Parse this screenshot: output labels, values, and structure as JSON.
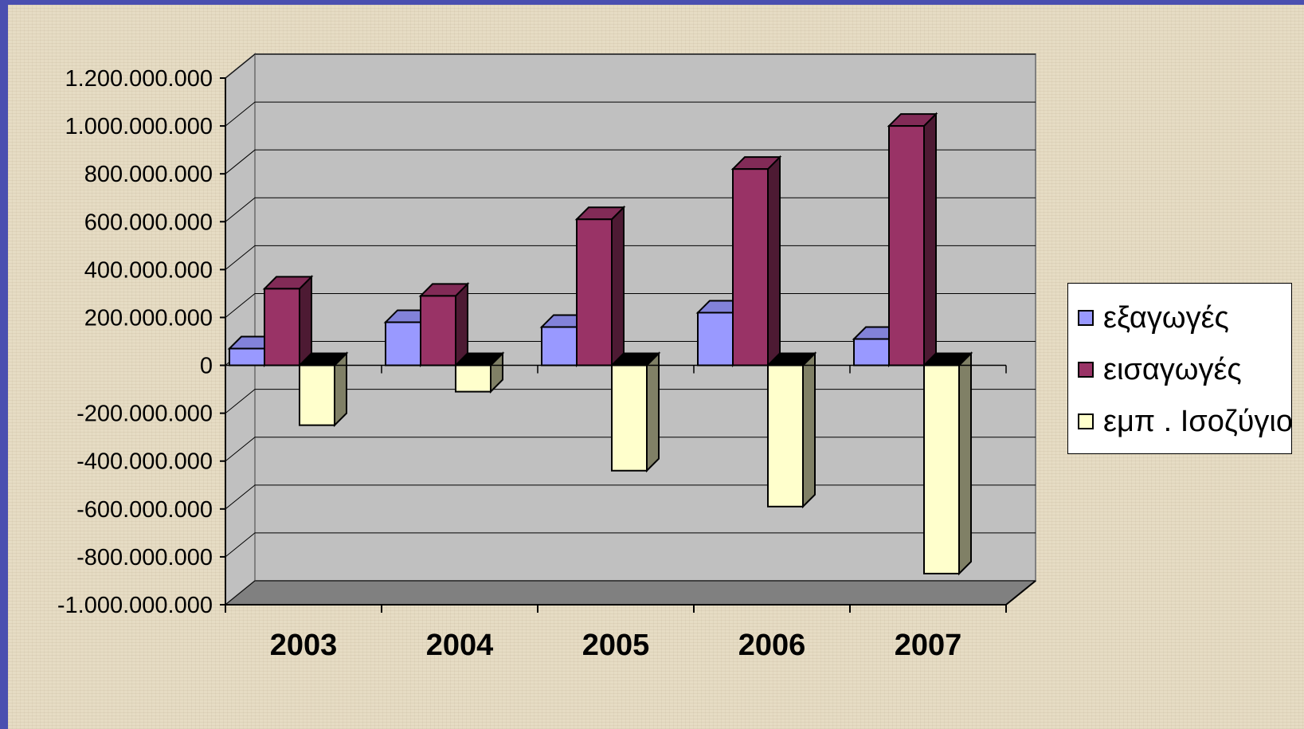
{
  "chart_data": {
    "type": "bar",
    "categories": [
      "2003",
      "2004",
      "2005",
      "2006",
      "2007"
    ],
    "series": [
      {
        "name": "εξαγωγές",
        "values": [
          70000000,
          180000000,
          160000000,
          220000000,
          110000000
        ],
        "color": "#9999ff"
      },
      {
        "name": "εισαγωγές",
        "values": [
          320000000,
          290000000,
          610000000,
          820000000,
          1000000000
        ],
        "color": "#993366"
      },
      {
        "name": "εμπ . Ισοζύγιο",
        "values": [
          -250000000,
          -110000000,
          -440000000,
          -590000000,
          -870000000
        ],
        "color": "#ffffcc"
      }
    ],
    "ylim": [
      -1000000000,
      1200000000
    ],
    "yticks": [
      {
        "value": 1200000000,
        "label": "1.200.000.000"
      },
      {
        "value": 1000000000,
        "label": "1.000.000.000"
      },
      {
        "value": 800000000,
        "label": "800.000.000"
      },
      {
        "value": 600000000,
        "label": "600.000.000"
      },
      {
        "value": 400000000,
        "label": "400.000.000"
      },
      {
        "value": 200000000,
        "label": "200.000.000"
      },
      {
        "value": 0,
        "label": "0"
      },
      {
        "value": -200000000,
        "label": "-200.000.000"
      },
      {
        "value": -400000000,
        "label": "-400.000.000"
      },
      {
        "value": -600000000,
        "label": "-600.000.000"
      },
      {
        "value": -800000000,
        "label": "-800.000.000"
      },
      {
        "value": -1000000000,
        "label": "-1.000.000.000"
      }
    ],
    "grid": true,
    "legend_position": "right",
    "title": "",
    "xlabel": "",
    "ylabel": ""
  }
}
